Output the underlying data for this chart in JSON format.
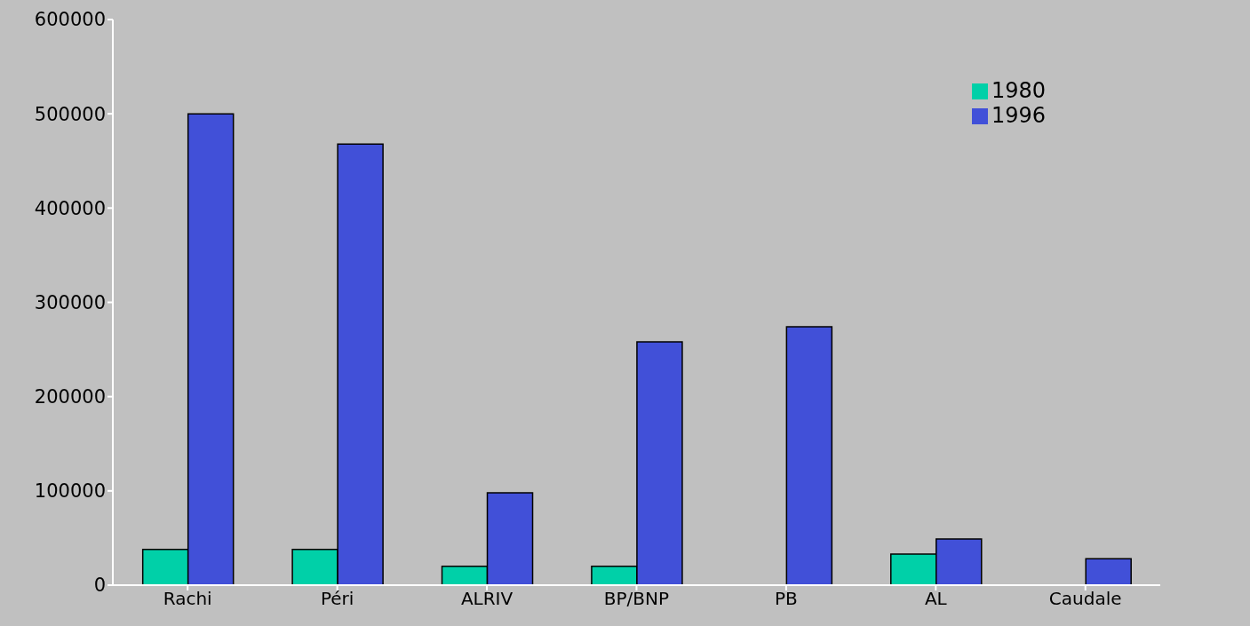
{
  "chart_data": {
    "type": "bar",
    "categories": [
      "Rachi",
      "Péri",
      "ALRIV",
      "BP/BNP",
      "PB",
      "AL",
      "Caudale"
    ],
    "series": [
      {
        "name": "1980",
        "color": "#00d0a8",
        "values": [
          38000,
          38000,
          20000,
          20000,
          0,
          33000,
          0
        ]
      },
      {
        "name": "1996",
        "color": "#4150d8",
        "values": [
          500000,
          468000,
          98000,
          258000,
          274000,
          49000,
          28000
        ]
      }
    ],
    "ylim": [
      0,
      600000
    ],
    "yticks": [
      0,
      100000,
      200000,
      300000,
      400000,
      500000,
      600000
    ],
    "grid": false,
    "legend": "top right"
  }
}
